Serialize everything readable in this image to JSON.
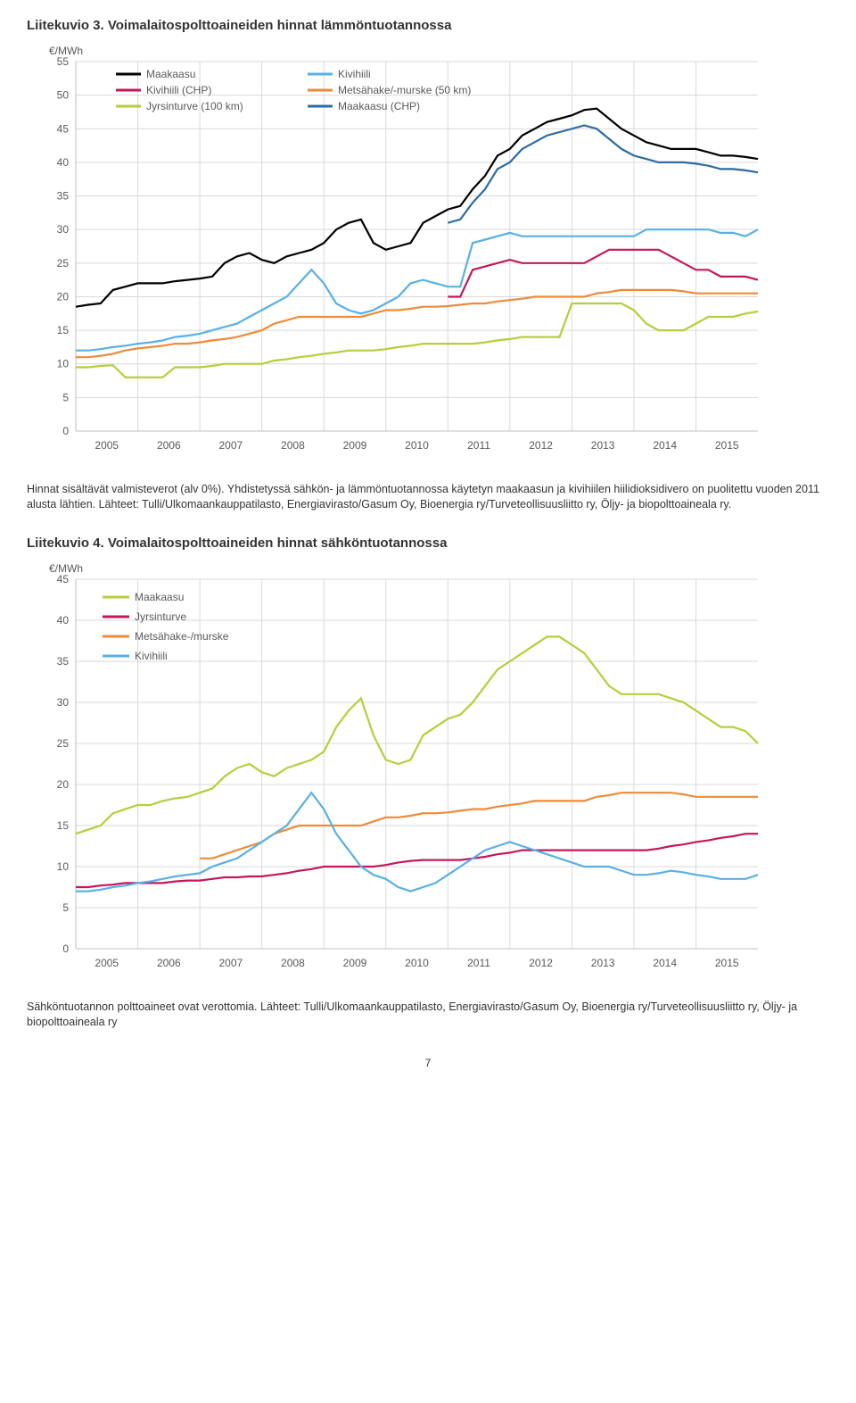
{
  "chart1": {
    "title": "Liitekuvio 3. Voimalaitospolttoaineiden hinnat lämmöntuotannossa",
    "ylabel": "€/MWh",
    "caption": "Hinnat sisältävät valmisteverot (alv 0%). Yhdistetyssä sähkön- ja lämmöntuotannossa käytetyn maakaasun ja kivihiilen hiilidioksidivero on puolitettu vuoden 2011 alusta lähtien. Lähteet: Tulli/Ulkomaankauppatilasto, Energiavirasto/Gasum Oy, Bioenergia ry/Turveteollisuusliitto ry, Öljy- ja biopolttoaineala ry.",
    "ylim": [
      0,
      55
    ],
    "ytick_step": 5,
    "x_categories": [
      "2005",
      "2006",
      "2007",
      "2008",
      "2009",
      "2010",
      "2011",
      "2012",
      "2013",
      "2014",
      "2015"
    ],
    "grid_color": "#d9d9d9",
    "background_color": "#ffffff",
    "legend": {
      "cols": [
        [
          {
            "label": "Maakaasu",
            "color": "#000000"
          },
          {
            "label": "Kivihiili (CHP)",
            "color": "#c2185b"
          },
          {
            "label": "Jyrsinturve (100 km)",
            "color": "#b4cf3a"
          }
        ],
        [
          {
            "label": "Kivihiili",
            "color": "#59b0e3"
          },
          {
            "label": "Metsähake/-murske (50 km)",
            "color": "#ed8b3a"
          },
          {
            "label": "Maakaasu (CHP)",
            "color": "#2b6ca3"
          }
        ]
      ]
    },
    "series": [
      {
        "name": "Maakaasu",
        "color": "#000000",
        "width": 2.5,
        "data": [
          18.5,
          18.8,
          19,
          21,
          21.5,
          22,
          22,
          22,
          22.3,
          22.5,
          22.7,
          23,
          25,
          26,
          26.5,
          25.5,
          25,
          26,
          26.5,
          27,
          28,
          30,
          31,
          31.5,
          28,
          27,
          27.5,
          28,
          31,
          32,
          33,
          33.5,
          36,
          38,
          41,
          42,
          44,
          45,
          46,
          46.5,
          47,
          47.8,
          48,
          46.5,
          45,
          44,
          43,
          42.5,
          42,
          42,
          42,
          41.5,
          41,
          41,
          40.8,
          40.5
        ]
      },
      {
        "name": "Maakaasu (CHP)",
        "color": "#2b6ca3",
        "width": 2.2,
        "data": [
          null,
          null,
          null,
          null,
          null,
          null,
          null,
          null,
          null,
          null,
          null,
          null,
          null,
          null,
          null,
          null,
          null,
          null,
          null,
          null,
          null,
          null,
          null,
          null,
          null,
          null,
          null,
          null,
          null,
          null,
          31,
          31.5,
          34,
          36,
          39,
          40,
          42,
          43,
          44,
          44.5,
          45,
          45.5,
          45,
          43.5,
          42,
          41,
          40.5,
          40,
          40,
          40,
          39.8,
          39.5,
          39,
          39,
          38.8,
          38.5
        ]
      },
      {
        "name": "Kivihiili",
        "color": "#59b0e3",
        "width": 2.2,
        "data": [
          12,
          12,
          12.2,
          12.5,
          12.7,
          13,
          13.2,
          13.5,
          14,
          14.2,
          14.5,
          15,
          15.5,
          16,
          17,
          18,
          19,
          20,
          22,
          24,
          22,
          19,
          18,
          17.5,
          18,
          19,
          20,
          22,
          22.5,
          22,
          21.5,
          21.5,
          28,
          28.5,
          29,
          29.5,
          29,
          29,
          29,
          29,
          29,
          29,
          29,
          29,
          29,
          29,
          30,
          30,
          30,
          30,
          30,
          30,
          29.5,
          29.5,
          29,
          30
        ]
      },
      {
        "name": "Kivihiili (CHP)",
        "color": "#c2185b",
        "width": 2.2,
        "data": [
          null,
          null,
          null,
          null,
          null,
          null,
          null,
          null,
          null,
          null,
          null,
          null,
          null,
          null,
          null,
          null,
          null,
          null,
          null,
          null,
          null,
          null,
          null,
          null,
          null,
          null,
          null,
          null,
          null,
          null,
          20,
          20,
          24,
          24.5,
          25,
          25.5,
          25,
          25,
          25,
          25,
          25,
          25,
          26,
          27,
          27,
          27,
          27,
          27,
          26,
          25,
          24,
          24,
          23,
          23,
          23,
          22.5
        ]
      },
      {
        "name": "Metsähake/-murske (50 km)",
        "color": "#ed8b3a",
        "width": 2.2,
        "data": [
          11,
          11,
          11.2,
          11.5,
          12,
          12.3,
          12.5,
          12.7,
          13,
          13,
          13.2,
          13.5,
          13.7,
          14,
          14.5,
          15,
          16,
          16.5,
          17,
          17,
          17,
          17,
          17,
          17,
          17.5,
          18,
          18,
          18.2,
          18.5,
          18.5,
          18.6,
          18.8,
          19,
          19,
          19.3,
          19.5,
          19.7,
          20,
          20,
          20,
          20,
          20,
          20.5,
          20.7,
          21,
          21,
          21,
          21,
          21,
          20.8,
          20.5,
          20.5,
          20.5,
          20.5,
          20.5,
          20.5
        ]
      },
      {
        "name": "Jyrsinturve (100 km)",
        "color": "#b4cf3a",
        "width": 2.2,
        "data": [
          9.5,
          9.5,
          9.7,
          9.8,
          8,
          8,
          8,
          8,
          9.5,
          9.5,
          9.5,
          9.7,
          10,
          10,
          10,
          10,
          10.5,
          10.7,
          11,
          11.2,
          11.5,
          11.7,
          12,
          12,
          12,
          12.2,
          12.5,
          12.7,
          13,
          13,
          13,
          13,
          13,
          13.2,
          13.5,
          13.7,
          14,
          14,
          14,
          14,
          19,
          19,
          19,
          19,
          19,
          18,
          16,
          15,
          15,
          15,
          16,
          17,
          17,
          17,
          17.5,
          17.8
        ]
      }
    ]
  },
  "chart2": {
    "title": "Liitekuvio 4. Voimalaitospolttoaineiden hinnat sähköntuotannossa",
    "ylabel": "€/MWh",
    "caption": "Sähköntuotannon polttoaineet ovat verottomia. Lähteet: Tulli/Ulkomaankauppatilasto, Energiavirasto/Gasum Oy, Bioenergia ry/Turveteollisuusliitto ry, Öljy- ja biopolttoaineala ry",
    "ylim": [
      0,
      45
    ],
    "ytick_step": 5,
    "x_categories": [
      "2005",
      "2006",
      "2007",
      "2008",
      "2009",
      "2010",
      "2011",
      "2012",
      "2013",
      "2014",
      "2015"
    ],
    "grid_color": "#d9d9d9",
    "background_color": "#ffffff",
    "legend": {
      "items": [
        {
          "label": "Maakaasu",
          "color": "#b4cf3a"
        },
        {
          "label": "Jyrsinturve",
          "color": "#c2185b"
        },
        {
          "label": "Metsähake-/murske",
          "color": "#ed8b3a"
        },
        {
          "label": "Kivihiili",
          "color": "#59b0e3"
        }
      ]
    },
    "series": [
      {
        "name": "Maakaasu",
        "color": "#b4cf3a",
        "width": 2.4,
        "data": [
          14,
          14.5,
          15,
          16.5,
          17,
          17.5,
          17.5,
          18,
          18.3,
          18.5,
          19,
          19.5,
          21,
          22,
          22.5,
          21.5,
          21,
          22,
          22.5,
          23,
          24,
          27,
          29,
          30.5,
          26,
          23,
          22.5,
          23,
          26,
          27,
          28,
          28.5,
          30,
          32,
          34,
          35,
          36,
          37,
          38,
          38,
          37,
          36,
          34,
          32,
          31,
          31,
          31,
          31,
          30.5,
          30,
          29,
          28,
          27,
          27,
          26.5,
          25
        ]
      },
      {
        "name": "Metsähake-/murske",
        "color": "#ed8b3a",
        "width": 2.2,
        "data": [
          null,
          null,
          null,
          null,
          null,
          null,
          null,
          null,
          null,
          null,
          11,
          11,
          11.5,
          12,
          12.5,
          13,
          14,
          14.5,
          15,
          15,
          15,
          15,
          15,
          15,
          15.5,
          16,
          16,
          16.2,
          16.5,
          16.5,
          16.6,
          16.8,
          17,
          17,
          17.3,
          17.5,
          17.7,
          18,
          18,
          18,
          18,
          18,
          18.5,
          18.7,
          19,
          19,
          19,
          19,
          19,
          18.8,
          18.5,
          18.5,
          18.5,
          18.5,
          18.5,
          18.5
        ]
      },
      {
        "name": "Jyrsinturve",
        "color": "#c2185b",
        "width": 2.2,
        "data": [
          7.5,
          7.5,
          7.7,
          7.8,
          8,
          8,
          8,
          8,
          8.2,
          8.3,
          8.3,
          8.5,
          8.7,
          8.7,
          8.8,
          8.8,
          9,
          9.2,
          9.5,
          9.7,
          10,
          10,
          10,
          10,
          10,
          10.2,
          10.5,
          10.7,
          10.8,
          10.8,
          10.8,
          10.8,
          11,
          11.2,
          11.5,
          11.7,
          12,
          12,
          12,
          12,
          12,
          12,
          12,
          12,
          12,
          12,
          12,
          12.2,
          12.5,
          12.7,
          13,
          13.2,
          13.5,
          13.7,
          14,
          14
        ]
      },
      {
        "name": "Kivihiili",
        "color": "#59b0e3",
        "width": 2.2,
        "data": [
          7,
          7,
          7.2,
          7.5,
          7.7,
          8,
          8.2,
          8.5,
          8.8,
          9,
          9.2,
          10,
          10.5,
          11,
          12,
          13,
          14,
          15,
          17,
          19,
          17,
          14,
          12,
          10,
          9,
          8.5,
          7.5,
          7,
          7.5,
          8,
          9,
          10,
          11,
          12,
          12.5,
          13,
          12.5,
          12,
          11.5,
          11,
          10.5,
          10,
          10,
          10,
          9.5,
          9,
          9,
          9.2,
          9.5,
          9.3,
          9,
          8.8,
          8.5,
          8.5,
          8.5,
          9
        ]
      }
    ]
  },
  "page_number": "7"
}
